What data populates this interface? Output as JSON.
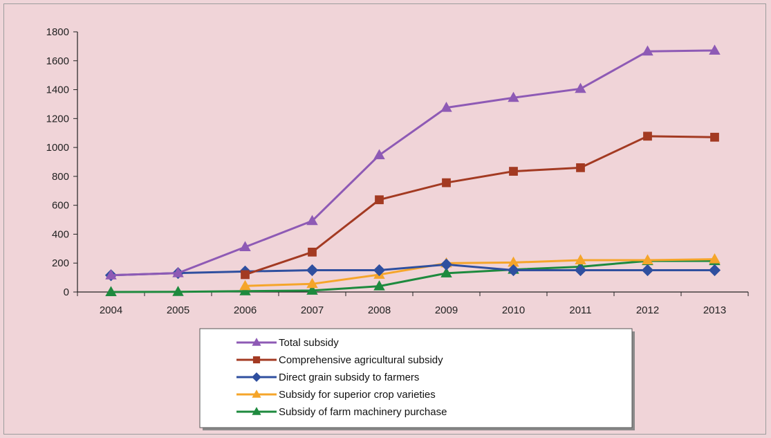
{
  "chart_data": {
    "type": "line",
    "title": "",
    "xlabel": "",
    "ylabel": "",
    "x": [
      "2004",
      "2005",
      "2006",
      "2007",
      "2008",
      "2009",
      "2010",
      "2011",
      "2012",
      "2013"
    ],
    "ylim": [
      0,
      1800
    ],
    "yticks": [
      0,
      200,
      400,
      600,
      800,
      1000,
      1200,
      1400,
      1600,
      1800
    ],
    "grid": false,
    "legend_position": "bottom",
    "series": [
      {
        "name": "Total subsidy",
        "color": "#8e5ab5",
        "marker": "triangle",
        "values": [
          116,
          131,
          311,
          492,
          947,
          1275,
          1344,
          1406,
          1665,
          1671
        ]
      },
      {
        "name": "Comprehensive agricultural subsidy",
        "color": "#a33a22",
        "marker": "square",
        "values": [
          null,
          null,
          120,
          276,
          638,
          756,
          835,
          860,
          1078,
          1071
        ]
      },
      {
        "name": "Direct grain subsidy to farmers",
        "color": "#2f4f9f",
        "marker": "diamond",
        "values": [
          116,
          131,
          142,
          151,
          151,
          190,
          151,
          151,
          151,
          151
        ]
      },
      {
        "name": "Subsidy for superior crop varieties",
        "color": "#f5a52a",
        "marker": "triangle",
        "values": [
          null,
          null,
          42,
          56,
          120,
          199,
          204,
          220,
          220,
          227
        ]
      },
      {
        "name": "Subsidy of farm machinery purchase",
        "color": "#1e8a3e",
        "marker": "triangle",
        "values": [
          0,
          1,
          6,
          10,
          40,
          130,
          155,
          175,
          215,
          215
        ]
      }
    ]
  }
}
